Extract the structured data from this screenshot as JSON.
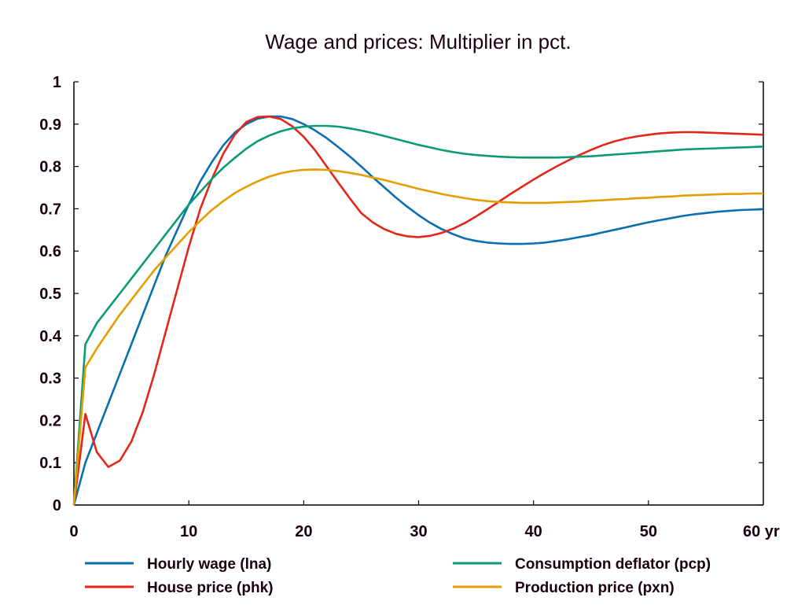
{
  "chart_data": {
    "type": "line",
    "title": "Wage and prices: Multiplier in pct.",
    "xlabel": "",
    "ylabel": "",
    "x_unit_label": "yr",
    "xlim": [
      0,
      60
    ],
    "ylim": [
      0,
      1
    ],
    "x_ticks": [
      0,
      10,
      20,
      30,
      40,
      50,
      60
    ],
    "x_tick_labels": [
      "0",
      "10",
      "20",
      "30",
      "40",
      "50",
      "60 yr"
    ],
    "y_ticks": [
      0,
      0.1,
      0.2,
      0.3,
      0.4,
      0.5,
      0.6,
      0.7,
      0.8,
      0.9,
      1
    ],
    "y_tick_labels": [
      "0",
      "0.1",
      "0.2",
      "0.3",
      "0.4",
      "0.5",
      "0.6",
      "0.7",
      "0.8",
      "0.9",
      "1"
    ],
    "grid": false,
    "legend_position": "bottom",
    "x": [
      0,
      1,
      2,
      3,
      4,
      5,
      6,
      7,
      8,
      9,
      10,
      11,
      12,
      13,
      14,
      15,
      16,
      17,
      18,
      19,
      20,
      21,
      22,
      23,
      24,
      25,
      26,
      27,
      28,
      29,
      30,
      31,
      32,
      33,
      34,
      35,
      36,
      37,
      38,
      39,
      40,
      41,
      42,
      43,
      44,
      45,
      46,
      47,
      48,
      49,
      50,
      51,
      52,
      53,
      54,
      55,
      56,
      57,
      58,
      59,
      60
    ],
    "series": [
      {
        "name": "Hourly wage (lna)",
        "color": "#0a6faf",
        "values": [
          0.0,
          0.1,
          0.17,
          0.24,
          0.31,
          0.38,
          0.45,
          0.52,
          0.59,
          0.65,
          0.71,
          0.765,
          0.81,
          0.85,
          0.88,
          0.9,
          0.913,
          0.918,
          0.918,
          0.912,
          0.9,
          0.885,
          0.867,
          0.846,
          0.824,
          0.8,
          0.775,
          0.751,
          0.727,
          0.705,
          0.685,
          0.667,
          0.652,
          0.64,
          0.63,
          0.624,
          0.62,
          0.618,
          0.617,
          0.617,
          0.618,
          0.62,
          0.624,
          0.628,
          0.633,
          0.638,
          0.644,
          0.65,
          0.656,
          0.662,
          0.668,
          0.673,
          0.678,
          0.683,
          0.687,
          0.69,
          0.693,
          0.695,
          0.697,
          0.698,
          0.699
        ]
      },
      {
        "name": "House price (phk)",
        "color": "#e2261a",
        "values": [
          0.0,
          0.215,
          0.125,
          0.09,
          0.105,
          0.15,
          0.22,
          0.31,
          0.41,
          0.51,
          0.61,
          0.7,
          0.77,
          0.83,
          0.875,
          0.905,
          0.917,
          0.918,
          0.912,
          0.895,
          0.87,
          0.838,
          0.8,
          0.762,
          0.725,
          0.69,
          0.668,
          0.652,
          0.641,
          0.635,
          0.633,
          0.636,
          0.643,
          0.653,
          0.666,
          0.682,
          0.699,
          0.717,
          0.735,
          0.752,
          0.769,
          0.785,
          0.8,
          0.814,
          0.827,
          0.839,
          0.85,
          0.859,
          0.866,
          0.871,
          0.875,
          0.878,
          0.88,
          0.881,
          0.881,
          0.88,
          0.879,
          0.878,
          0.877,
          0.876,
          0.875
        ]
      },
      {
        "name": "Consumption deflator (pcp)",
        "color": "#0a9a74",
        "values": [
          0.0,
          0.38,
          0.43,
          0.465,
          0.5,
          0.535,
          0.57,
          0.605,
          0.64,
          0.675,
          0.71,
          0.74,
          0.77,
          0.797,
          0.82,
          0.842,
          0.86,
          0.873,
          0.883,
          0.89,
          0.894,
          0.896,
          0.896,
          0.894,
          0.89,
          0.885,
          0.879,
          0.872,
          0.865,
          0.858,
          0.851,
          0.845,
          0.839,
          0.834,
          0.83,
          0.827,
          0.825,
          0.823,
          0.822,
          0.821,
          0.821,
          0.821,
          0.821,
          0.822,
          0.823,
          0.824,
          0.826,
          0.828,
          0.83,
          0.832,
          0.834,
          0.836,
          0.838,
          0.84,
          0.841,
          0.842,
          0.843,
          0.844,
          0.845,
          0.846,
          0.847
        ]
      },
      {
        "name": "Production price (pxn)",
        "color": "#e59e00",
        "values": [
          0.0,
          0.325,
          0.37,
          0.41,
          0.45,
          0.485,
          0.52,
          0.555,
          0.585,
          0.615,
          0.645,
          0.672,
          0.697,
          0.718,
          0.737,
          0.752,
          0.765,
          0.776,
          0.784,
          0.789,
          0.792,
          0.793,
          0.792,
          0.789,
          0.785,
          0.78,
          0.774,
          0.768,
          0.761,
          0.754,
          0.747,
          0.741,
          0.735,
          0.73,
          0.725,
          0.721,
          0.718,
          0.716,
          0.715,
          0.714,
          0.714,
          0.714,
          0.715,
          0.716,
          0.717,
          0.719,
          0.72,
          0.722,
          0.723,
          0.725,
          0.726,
          0.728,
          0.729,
          0.731,
          0.732,
          0.733,
          0.734,
          0.735,
          0.735,
          0.736,
          0.736
        ]
      }
    ]
  }
}
